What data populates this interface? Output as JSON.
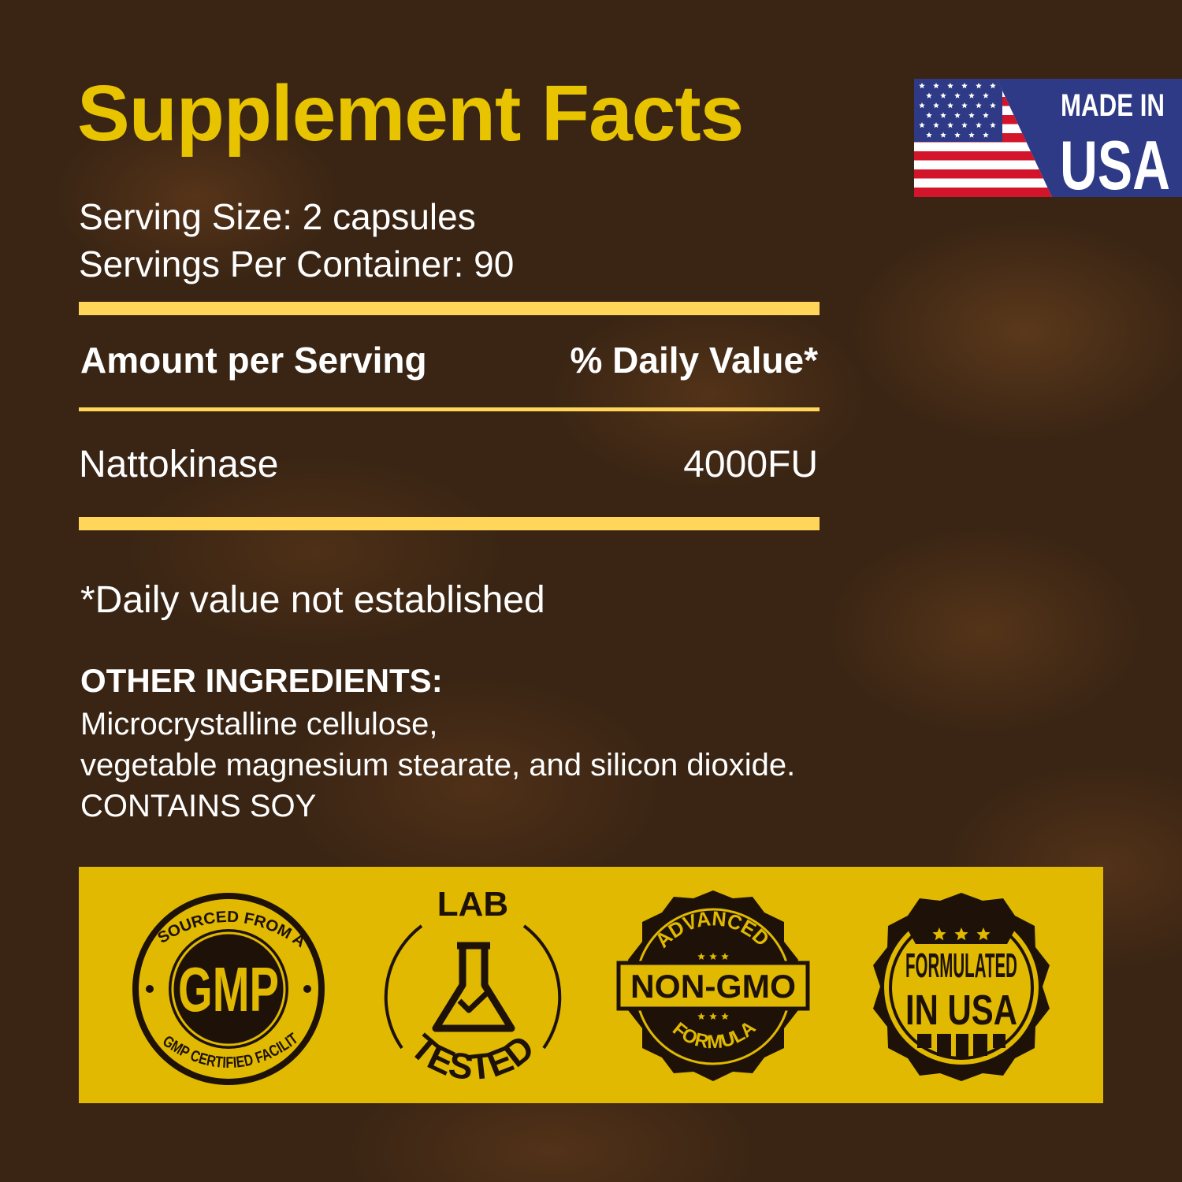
{
  "title": "Supplement Facts",
  "serving_size": "Serving Size: 2 capsules",
  "servings_per_container": "Servings Per Container: 90",
  "table": {
    "header_left": "Amount per Serving",
    "header_right": "% Daily Value*",
    "rows": [
      {
        "name": "Nattokinase",
        "amount": "4000FU"
      }
    ]
  },
  "footnote": "*Daily value not established",
  "other_ingredients": {
    "heading": "OTHER INGREDIENTS:",
    "line1": "Microcrystalline cellulose,",
    "line2": "vegetable magnesium stearate, and silicon dioxide.",
    "allergen": "CONTAINS SOY"
  },
  "made_in_usa": {
    "line1": "MADE IN",
    "line2": "USA"
  },
  "badges": {
    "gmp": {
      "top": "SOURCED FROM A",
      "center": "GMP",
      "bottom": "GMP CERTIFIED FACILITY"
    },
    "lab": {
      "top": "LAB",
      "bottom": "TESTED"
    },
    "nongmo": {
      "top": "ADVANCED",
      "center": "NON-GMO",
      "bottom": "FORMULA"
    },
    "formulated": {
      "line1": "FORMULATED",
      "line2": "IN USA"
    }
  },
  "colors": {
    "title": "#e8c400",
    "rule": "#ffd65a",
    "panel": "#e0b900",
    "badge_ink": "#1e1208",
    "flag_blue": "#2e3a86",
    "flag_red": "#d2152a"
  }
}
